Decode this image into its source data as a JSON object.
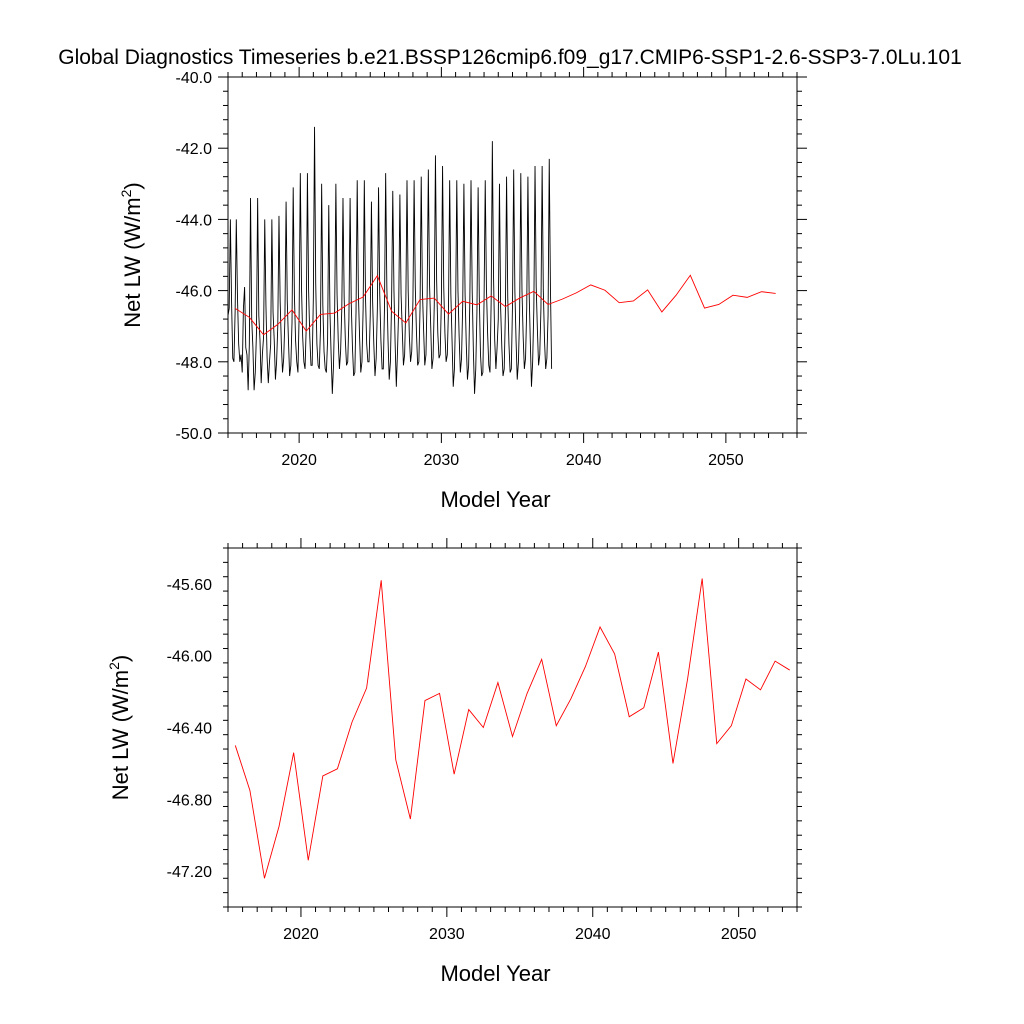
{
  "title": "Global Diagnostics Timeseries b.e21.BSSP126cmip6.f09_g17.CMIP6-SSP1-2.6-SSP3-7.0Lu.101",
  "chart_data": [
    {
      "type": "line",
      "xlabel": "Model Year",
      "ylabel_main": "Net LW (W/m",
      "ylabel_sup": "2",
      "ylabel_close": ")",
      "xlim": [
        2015,
        2055
      ],
      "ylim": [
        -50.0,
        -40.0
      ],
      "xticks": [
        2020,
        2030,
        2040,
        2050
      ],
      "yticks": [
        "-50.0",
        "-48.0",
        "-46.0",
        "-44.0",
        "-42.0",
        "-40.0"
      ],
      "series": [
        {
          "color": "#000000",
          "values": [
            -46.7,
            -46.5,
            -44.0,
            -46.3,
            -47.9,
            -48.0,
            -46.6,
            -44.0,
            -46.2,
            -47.5,
            -48.0,
            -47.8,
            -48.3,
            -46.5,
            -45.9,
            -47.6,
            -47.8,
            -48.8,
            -47.5,
            -43.4,
            -46.8,
            -47.6,
            -48.8,
            -48.3,
            -47.2,
            -43.4,
            -46.7,
            -47.4,
            -48.6,
            -47.8,
            -47.3,
            -44.0,
            -46.4,
            -47.9,
            -48.6,
            -48.0,
            -47.5,
            -44.0,
            -46.6,
            -47.4,
            -48.5,
            -48.0,
            -47.0,
            -43.9,
            -46.3,
            -47.5,
            -48.3,
            -47.9,
            -46.8,
            -43.5,
            -46.3,
            -47.4,
            -48.4,
            -48.1,
            -46.9,
            -43.1,
            -46.1,
            -47.4,
            -48.0,
            -48.3,
            -46.7,
            -42.7,
            -45.9,
            -47.3,
            -48.0,
            -48.2,
            -47.0,
            -42.7,
            -46.0,
            -47.3,
            -48.1,
            -48.1,
            -46.2,
            -41.4,
            -45.8,
            -47.5,
            -48.1,
            -48.2,
            -47.1,
            -43.0,
            -46.4,
            -47.7,
            -48.2,
            -48.3,
            -47.4,
            -43.6,
            -46.6,
            -47.8,
            -48.9,
            -48.1,
            -46.5,
            -43.0,
            -46.1,
            -47.4,
            -48.2,
            -47.7,
            -46.5,
            -43.4,
            -46.2,
            -47.4,
            -48.1,
            -48.0,
            -46.8,
            -43.4,
            -46.4,
            -47.6,
            -48.4,
            -48.3,
            -46.6,
            -42.9,
            -46.1,
            -47.3,
            -48.3,
            -48.0,
            -46.5,
            -42.9,
            -46.2,
            -47.5,
            -48.0,
            -48.0,
            -46.7,
            -43.5,
            -46.3,
            -47.5,
            -48.4,
            -47.9,
            -46.5,
            -43.1,
            -46.1,
            -47.4,
            -48.2,
            -48.2,
            -46.5,
            -42.7,
            -45.9,
            -47.4,
            -48.5,
            -48.0,
            -46.3,
            -43.2,
            -46.0,
            -47.5,
            -48.7,
            -47.7,
            -46.5,
            -43.3,
            -46.1,
            -47.1,
            -48.1,
            -47.8,
            -46.4,
            -42.9,
            -46.0,
            -47.3,
            -48.0,
            -47.7,
            -46.3,
            -42.9,
            -45.9,
            -47.2,
            -48.1,
            -48.0,
            -46.5,
            -42.8,
            -46.0,
            -47.1,
            -48.1,
            -47.8,
            -46.1,
            -42.6,
            -45.8,
            -47.0,
            -48.2,
            -47.9,
            -46.4,
            -42.2,
            -45.7,
            -47.2,
            -47.9,
            -47.8,
            -46.3,
            -42.5,
            -45.9,
            -47.2,
            -48.0,
            -47.8,
            -46.5,
            -42.9,
            -46.1,
            -47.4,
            -48.7,
            -48.2,
            -46.6,
            -42.9,
            -46.0,
            -47.3,
            -48.3,
            -47.9,
            -46.4,
            -43.0,
            -46.1,
            -47.5,
            -48.5,
            -48.1,
            -46.3,
            -42.9,
            -46.0,
            -47.7,
            -48.9,
            -48.2,
            -46.6,
            -43.1,
            -46.2,
            -47.8,
            -48.4,
            -48.3,
            -46.3,
            -42.9,
            -45.9,
            -47.2,
            -48.1,
            -48.3,
            -46.3,
            -41.8,
            -45.6,
            -47.4,
            -48.2,
            -47.6,
            -46.8,
            -43.0,
            -46.5,
            -47.6,
            -48.4,
            -48.2,
            -46.6,
            -42.8,
            -46.2,
            -47.5,
            -48.3,
            -48.2,
            -46.4,
            -42.6,
            -46.0,
            -47.4,
            -48.5,
            -48.0,
            -46.7,
            -42.7,
            -46.0,
            -47.3,
            -48.2,
            -47.9,
            -46.5,
            -42.8,
            -46.0,
            -47.4,
            -48.7,
            -48.0,
            -46.5,
            -42.5,
            -45.9,
            -47.1,
            -48.1,
            -47.8,
            -46.5,
            -42.5,
            -46.0,
            -47.4,
            -48.2,
            -47.9,
            -46.7,
            -42.3,
            -45.9,
            -48.2
          ]
        },
        {
          "color": "#ff0000",
          "values": [
            -46.5,
            -46.75,
            -47.24,
            -46.95,
            -46.54,
            -47.14,
            -46.67,
            -46.63,
            -46.37,
            -46.18,
            -45.58,
            -46.58,
            -46.91,
            -46.25,
            -46.21,
            -46.66,
            -46.3,
            -46.4,
            -46.15,
            -46.45,
            -46.21,
            -46.02,
            -46.39,
            -46.24,
            -46.06,
            -45.84,
            -45.99,
            -46.34,
            -46.29,
            -45.98,
            -46.6,
            -46.13,
            -45.57,
            -46.49,
            -46.39,
            -46.13,
            -46.19,
            -46.03,
            -46.08
          ]
        }
      ]
    },
    {
      "type": "line",
      "xlabel": "Model Year",
      "ylabel_main": "Net LW (W/m",
      "ylabel_sup": "2",
      "ylabel_close": ")",
      "xlim": [
        2015,
        2054
      ],
      "ylim": [
        -47.4,
        -45.4
      ],
      "xticks": [
        2020,
        2030,
        2040,
        2050
      ],
      "yticks": [
        "-47.20",
        "-46.80",
        "-46.40",
        "-46.00",
        "-45.60"
      ],
      "series": [
        {
          "color": "#ff0000",
          "values": [
            -46.5,
            -46.75,
            -47.24,
            -46.95,
            -46.54,
            -47.14,
            -46.67,
            -46.63,
            -46.37,
            -46.18,
            -45.58,
            -46.58,
            -46.91,
            -46.25,
            -46.21,
            -46.66,
            -46.3,
            -46.4,
            -46.15,
            -46.45,
            -46.21,
            -46.02,
            -46.39,
            -46.24,
            -46.06,
            -45.84,
            -45.99,
            -46.34,
            -46.29,
            -45.98,
            -46.6,
            -46.13,
            -45.57,
            -46.49,
            -46.39,
            -46.13,
            -46.19,
            -46.03,
            -46.08
          ]
        }
      ]
    }
  ]
}
